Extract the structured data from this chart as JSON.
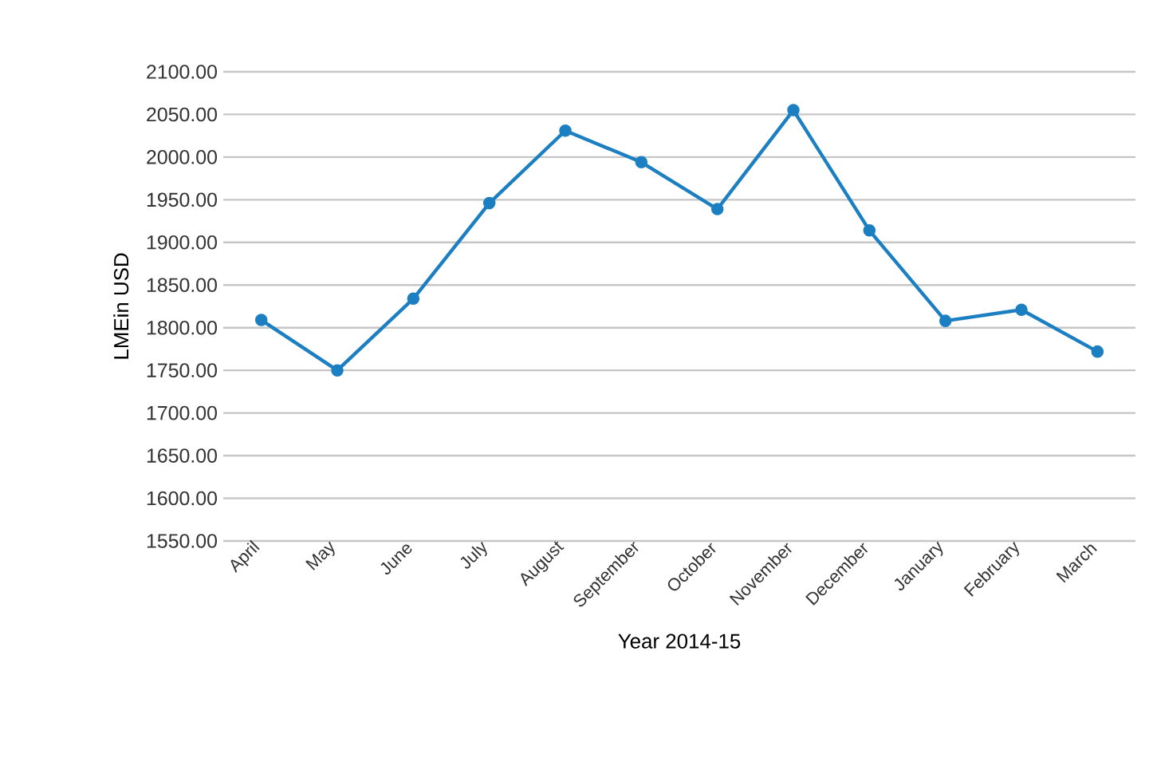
{
  "chart_data": {
    "type": "line",
    "xlabel": "Year 2014-15",
    "ylabel": "LMEin USD",
    "categories": [
      "April",
      "May",
      "June",
      "July",
      "August",
      "September",
      "October",
      "November",
      "December",
      "January",
      "February",
      "March"
    ],
    "series": [
      {
        "color": "#1b7fc2",
        "values": [
          1809,
          1750,
          1834,
          1946,
          2031,
          1994,
          1939,
          2055,
          1914,
          1808,
          1821,
          1772
        ]
      }
    ],
    "ylim": [
      1550,
      2100
    ],
    "yticks": [
      {
        "value": 1550,
        "label": "1550.00"
      },
      {
        "value": 1600,
        "label": "1600.00"
      },
      {
        "value": 1650,
        "label": "1650.00"
      },
      {
        "value": 1700,
        "label": "1700.00"
      },
      {
        "value": 1750,
        "label": "1750.00"
      },
      {
        "value": 1800,
        "label": "1800.00"
      },
      {
        "value": 1850,
        "label": "1850.00"
      },
      {
        "value": 1900,
        "label": "1900.00"
      },
      {
        "value": 1950,
        "label": "1950.00"
      },
      {
        "value": 2000,
        "label": "2000.00"
      },
      {
        "value": 2050,
        "label": "2050.00"
      },
      {
        "value": 2100,
        "label": "2100.00"
      }
    ],
    "grid": "y",
    "marker": "circle",
    "line_style": "solid"
  }
}
